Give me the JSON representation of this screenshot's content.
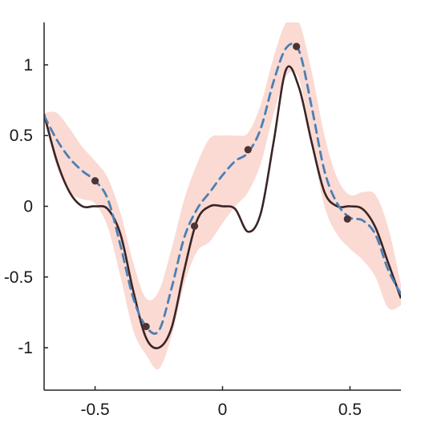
{
  "chart_data": {
    "type": "line",
    "title": "",
    "xlabel": "",
    "ylabel": "",
    "xlim": [
      -0.7,
      0.7
    ],
    "ylim": [
      -1.3,
      1.3
    ],
    "grid": false,
    "x_ticks": [
      -0.5,
      0,
      0.5
    ],
    "x_tick_labels": [
      "-0.5",
      "0",
      "0.5"
    ],
    "y_ticks": [
      1,
      0.5,
      0,
      -0.5,
      -1
    ],
    "y_tick_labels": [
      "1",
      "0.5",
      "0",
      "-0.5",
      "-1"
    ],
    "colors": {
      "truth": "#3a2424",
      "mean": "#4a7fb5",
      "band": "#f9d3cb",
      "points": "#4a3434",
      "axes": "#222222"
    },
    "series": [
      {
        "kind": "true_function",
        "style": "solid",
        "x": [
          -0.7,
          -0.65,
          -0.6,
          -0.55,
          -0.5,
          -0.45,
          -0.4,
          -0.35,
          -0.3,
          -0.25,
          -0.2,
          -0.15,
          -0.1,
          -0.05,
          0,
          0.05,
          0.1,
          0.15,
          0.2,
          0.25,
          0.3,
          0.35,
          0.4,
          0.45,
          0.5,
          0.55,
          0.6,
          0.65,
          0.7
        ],
        "y": [
          0.65,
          0.32,
          0.1,
          0.0,
          0.0,
          -0.02,
          -0.2,
          -0.6,
          -0.93,
          -1.0,
          -0.86,
          -0.45,
          -0.1,
          0.0,
          0.0,
          -0.02,
          -0.18,
          -0.05,
          0.45,
          0.97,
          0.84,
          0.45,
          0.1,
          0.0,
          0.0,
          -0.02,
          -0.15,
          -0.4,
          -0.65
        ]
      },
      {
        "kind": "posterior_mean",
        "style": "dashed",
        "x": [
          -0.7,
          -0.65,
          -0.6,
          -0.55,
          -0.5,
          -0.45,
          -0.4,
          -0.35,
          -0.3,
          -0.25,
          -0.2,
          -0.15,
          -0.1,
          -0.05,
          0,
          0.05,
          0.1,
          0.15,
          0.2,
          0.25,
          0.3,
          0.35,
          0.4,
          0.45,
          0.5,
          0.55,
          0.6,
          0.65,
          0.7
        ],
        "y": [
          0.64,
          0.47,
          0.34,
          0.25,
          0.18,
          0.05,
          -0.28,
          -0.65,
          -0.85,
          -0.88,
          -0.58,
          -0.22,
          -0.02,
          0.1,
          0.22,
          0.32,
          0.38,
          0.55,
          0.88,
          1.12,
          1.1,
          0.7,
          0.25,
          0.02,
          -0.08,
          -0.1,
          -0.2,
          -0.45,
          -0.62
        ]
      }
    ],
    "band": {
      "kind": "confidence_interval",
      "x": [
        -0.7,
        -0.65,
        -0.6,
        -0.55,
        -0.5,
        -0.45,
        -0.4,
        -0.35,
        -0.3,
        -0.25,
        -0.2,
        -0.15,
        -0.1,
        -0.05,
        0,
        0.05,
        0.1,
        0.15,
        0.2,
        0.25,
        0.3,
        0.35,
        0.4,
        0.45,
        0.5,
        0.55,
        0.6,
        0.65,
        0.7
      ],
      "upper": [
        0.66,
        0.66,
        0.55,
        0.42,
        0.32,
        0.2,
        -0.05,
        -0.4,
        -0.65,
        -0.6,
        -0.3,
        0.05,
        0.3,
        0.48,
        0.5,
        0.5,
        0.52,
        0.72,
        1.05,
        1.3,
        1.3,
        0.95,
        0.5,
        0.2,
        0.08,
        0.1,
        0.08,
        -0.15,
        -0.55
      ],
      "lower": [
        0.64,
        0.28,
        0.1,
        0.05,
        0.02,
        -0.15,
        -0.5,
        -0.88,
        -1.05,
        -1.15,
        -0.92,
        -0.55,
        -0.32,
        -0.25,
        -0.12,
        0.0,
        0.1,
        0.3,
        0.65,
        0.92,
        0.9,
        0.45,
        0.0,
        -0.2,
        -0.3,
        -0.38,
        -0.5,
        -0.72,
        -0.7
      ]
    },
    "points": {
      "kind": "observations",
      "x": [
        -0.5,
        -0.3,
        -0.11,
        0.1,
        0.29,
        0.49
      ],
      "y": [
        0.18,
        -0.85,
        -0.14,
        0.4,
        1.13,
        -0.09
      ]
    }
  }
}
